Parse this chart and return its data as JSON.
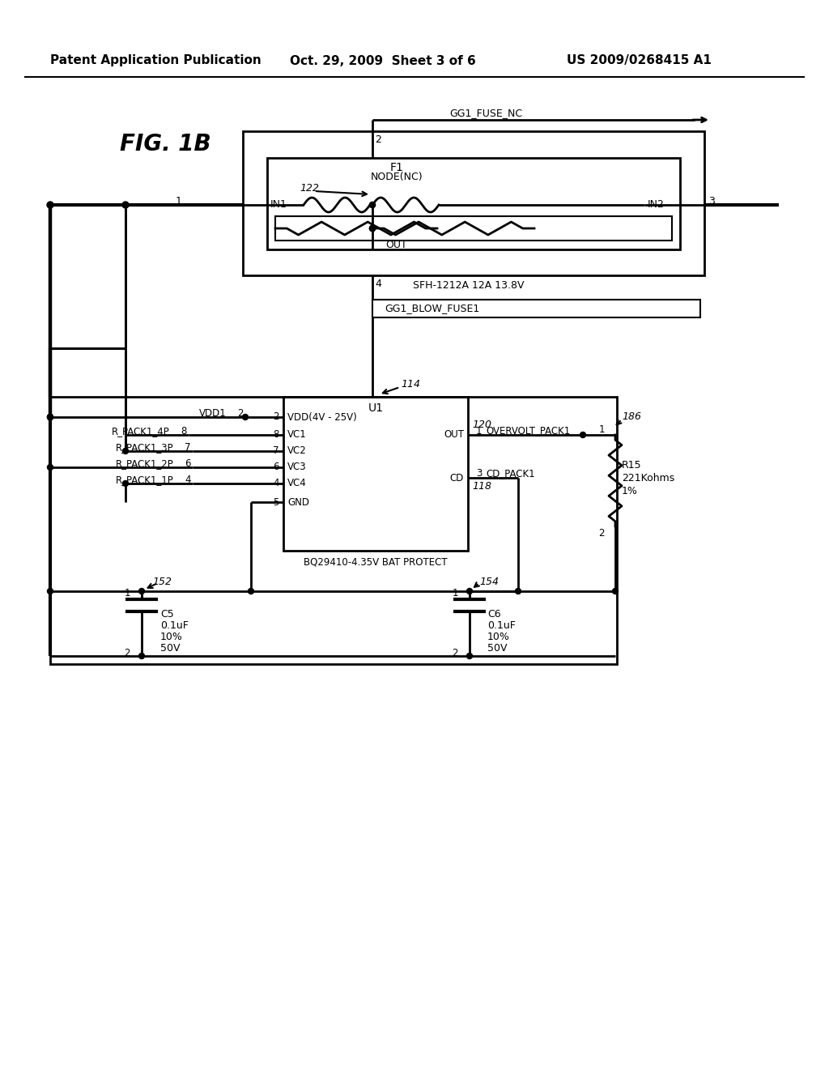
{
  "title_left": "Patent Application Publication",
  "title_mid": "Oct. 29, 2009  Sheet 3 of 6",
  "title_right": "US 2009/0268415 A1",
  "fig_label": "FIG. 1B",
  "background_color": "#ffffff",
  "line_color": "#000000",
  "text_color": "#000000"
}
